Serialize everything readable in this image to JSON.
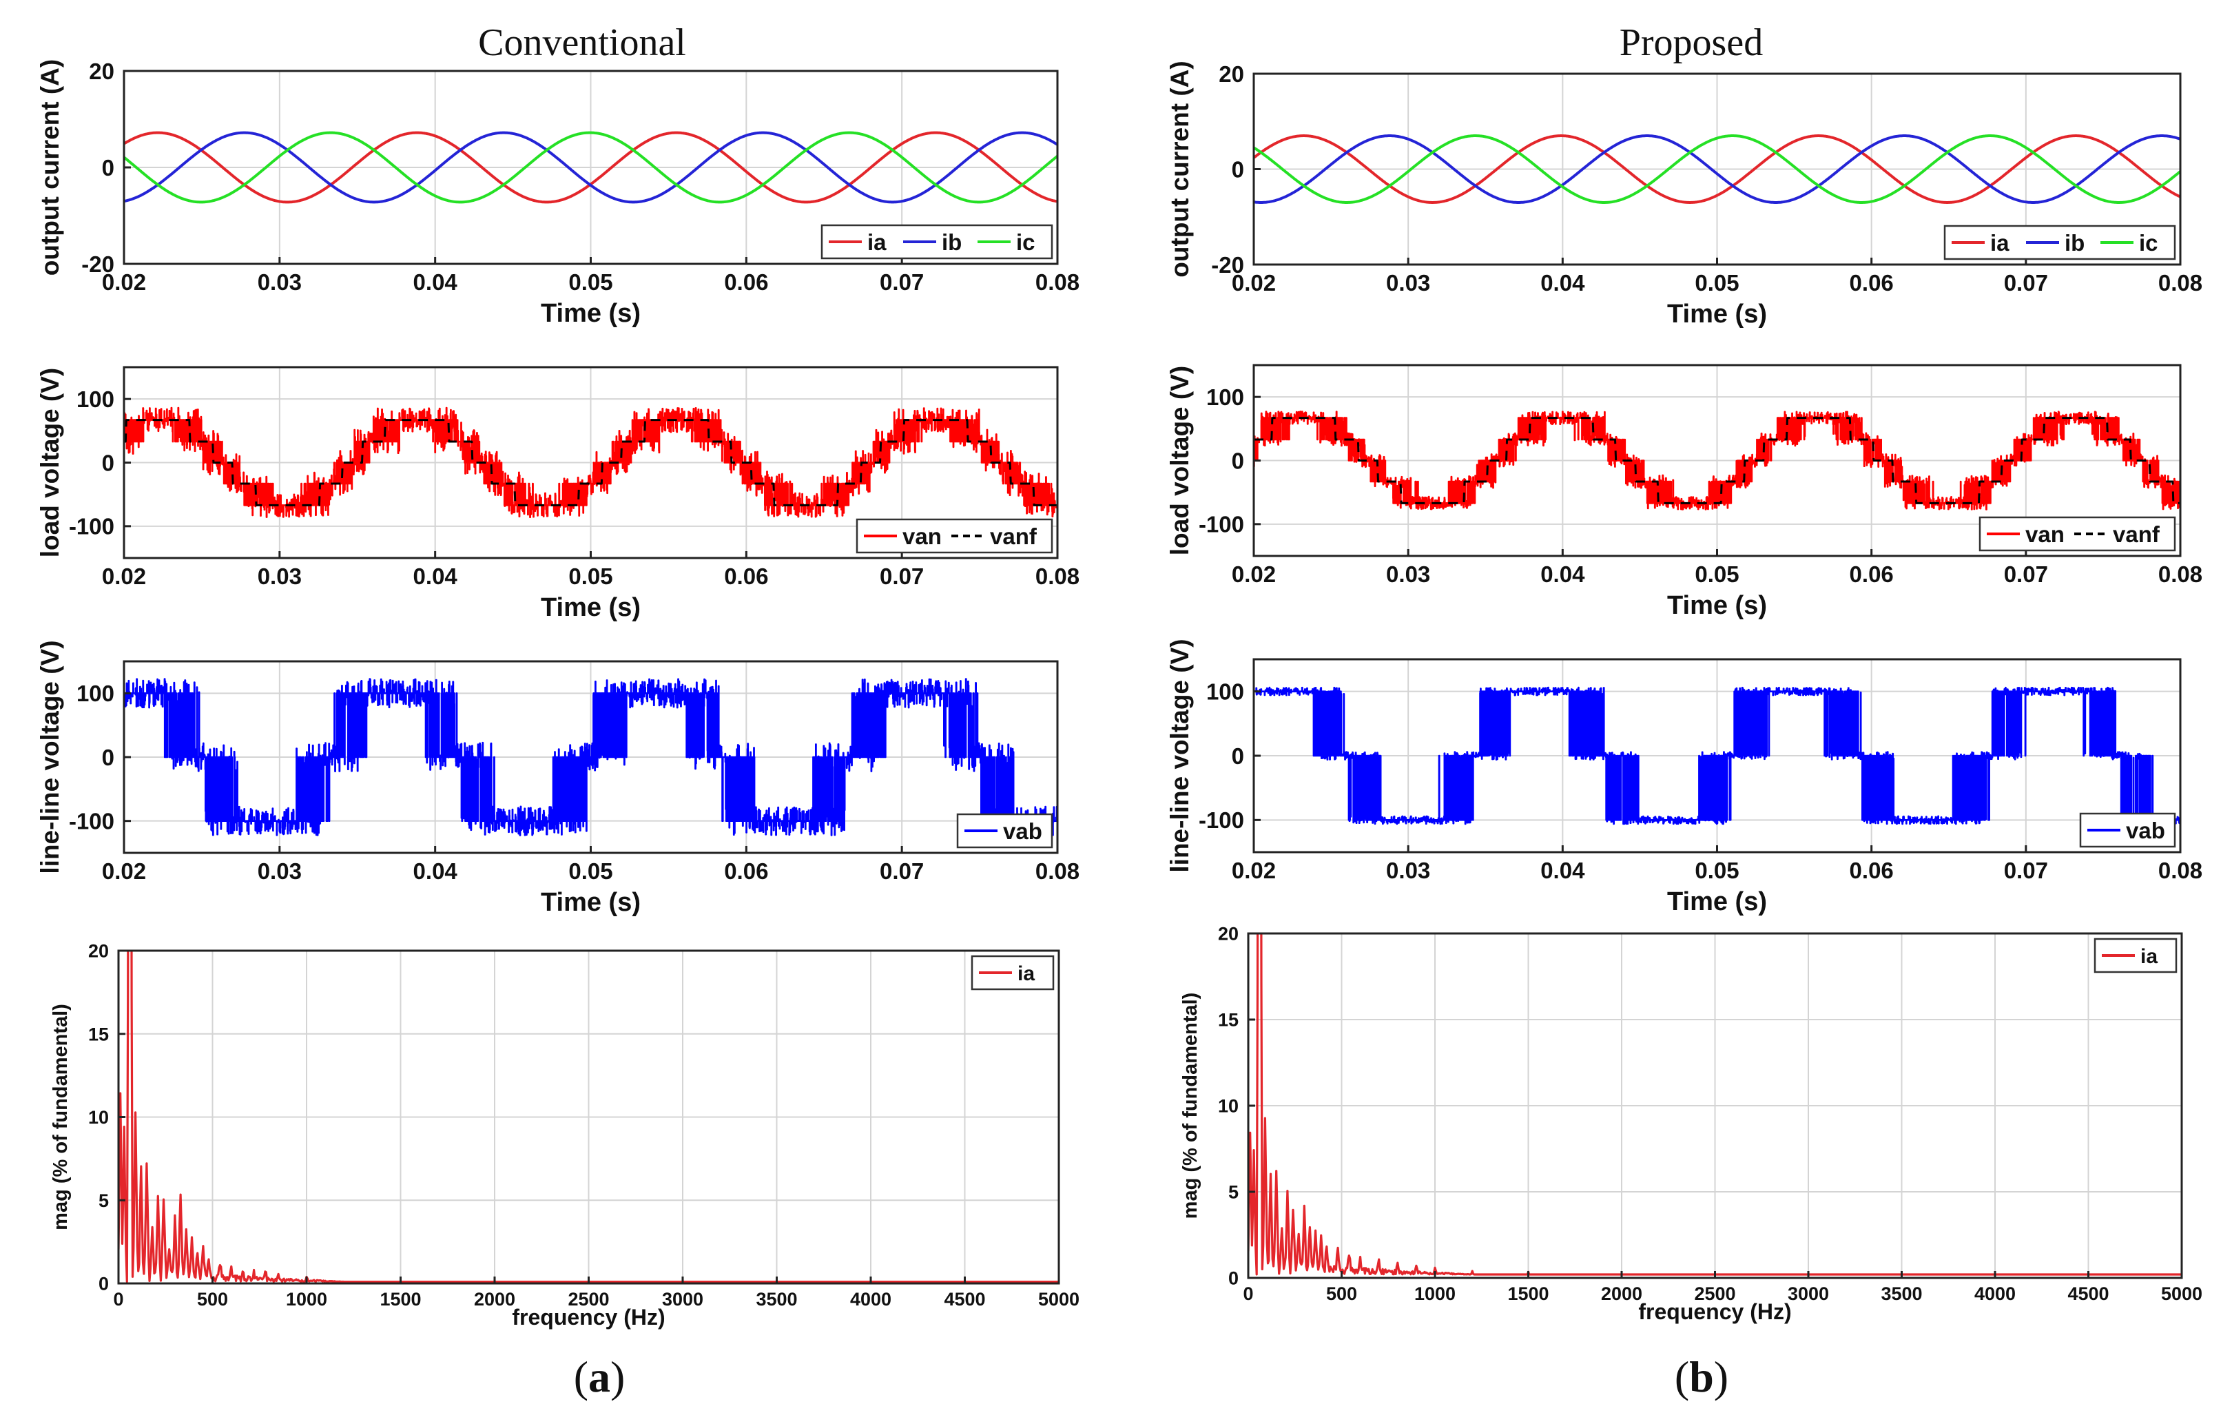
{
  "figure": {
    "columns": [
      {
        "title": "Conventional",
        "caption_letter": "a"
      },
      {
        "title": "Proposed",
        "caption_letter": "b"
      }
    ],
    "caption_open": "(",
    "caption_close": ")"
  },
  "colors": {
    "ia": "#e3262b",
    "ib": "#2424d6",
    "ic": "#25e025",
    "van": "#ff0000",
    "vanf": "#000000",
    "vab": "#0000ff",
    "fft": "#e3262b",
    "grid": "#d4d4d4",
    "axis": "#222222"
  },
  "chart_data": [
    {
      "id": "a-current",
      "panel": "a",
      "type": "line",
      "ylabel": "output current (A)",
      "xlabel": "Time (s)",
      "xlim": [
        0.02,
        0.08
      ],
      "ylim": [
        -20,
        20
      ],
      "xticks": [
        "0.02",
        "0.03",
        "0.04",
        "0.05",
        "0.06",
        "0.07",
        "0.08"
      ],
      "yticks": [
        "-20",
        "0",
        "20"
      ],
      "legend": [
        "ia",
        "ib",
        "ic"
      ],
      "legend_position": "bottom-right",
      "series": [
        {
          "name": "ia",
          "kind": "sine",
          "amplitude": 7.2,
          "frequency": 60,
          "phase_deg": -29
        },
        {
          "name": "ib",
          "kind": "sine",
          "amplitude": 7.2,
          "frequency": 60,
          "phase_deg": -149
        },
        {
          "name": "ic",
          "kind": "sine",
          "amplitude": 7.2,
          "frequency": 60,
          "phase_deg": 91
        }
      ]
    },
    {
      "id": "a-load",
      "panel": "a",
      "type": "line",
      "ylabel": "load voltage (V)",
      "xlabel": "Time (s)",
      "xlim": [
        0.02,
        0.08
      ],
      "ylim": [
        -150,
        150
      ],
      "xticks": [
        "0.02",
        "0.03",
        "0.04",
        "0.05",
        "0.06",
        "0.07",
        "0.08"
      ],
      "yticks": [
        "-100",
        "0",
        "100"
      ],
      "legend": [
        "van",
        "vanf"
      ],
      "legend_position": "bottom-right",
      "series": [
        {
          "name": "van",
          "kind": "pwm-phase",
          "amplitude": 70,
          "frequency": 60,
          "phase_deg": -29,
          "levels": [
            -67,
            -33,
            0,
            33,
            67
          ],
          "ripple": 38,
          "seed": 11
        },
        {
          "name": "vanf",
          "kind": "staircase-dashed",
          "amplitude": 70,
          "frequency": 60,
          "phase_deg": -29,
          "levels": [
            -67,
            -33,
            0,
            33,
            67
          ]
        }
      ]
    },
    {
      "id": "a-line",
      "panel": "a",
      "type": "line",
      "ylabel": "line-line voltage (V)",
      "xlabel": "Time (s)",
      "xlim": [
        0.02,
        0.08
      ],
      "ylim": [
        -150,
        150
      ],
      "xticks": [
        "0.02",
        "0.03",
        "0.04",
        "0.05",
        "0.06",
        "0.07",
        "0.08"
      ],
      "yticks": [
        "-100",
        "0",
        "100"
      ],
      "legend": [
        "vab"
      ],
      "legend_position": "bottom-right",
      "series": [
        {
          "name": "vab",
          "kind": "pwm-line",
          "amplitude": 125,
          "frequency": 60,
          "phase_deg": 1,
          "levels": [
            -100,
            0,
            100
          ],
          "ripple": 45,
          "seed": 23
        }
      ]
    },
    {
      "id": "a-fft",
      "panel": "a",
      "type": "line",
      "ylabel": "mag (% of fundamental)",
      "xlabel": "frequency (Hz)",
      "xlim": [
        0,
        5000
      ],
      "ylim": [
        0,
        20
      ],
      "xticks": [
        "0",
        "500",
        "1000",
        "1500",
        "2000",
        "2500",
        "3000",
        "3500",
        "4000",
        "4500",
        "5000"
      ],
      "yticks": [
        "0",
        "5",
        "10",
        "15",
        "20"
      ],
      "legend": [
        "ia"
      ],
      "legend_position": "top-right",
      "series": [
        {
          "name": "ia",
          "kind": "spectrum",
          "peaks": [
            [
              10,
              11
            ],
            [
              30,
              9
            ],
            [
              60,
              100
            ],
            [
              90,
              10
            ],
            [
              120,
              7
            ],
            [
              150,
              6.8
            ],
            [
              180,
              3
            ],
            [
              210,
              4.8
            ],
            [
              240,
              4.9
            ],
            [
              270,
              2
            ],
            [
              300,
              3.5
            ],
            [
              330,
              5.2
            ],
            [
              360,
              3
            ],
            [
              390,
              2.5
            ],
            [
              420,
              1.8
            ],
            [
              450,
              2
            ],
            [
              480,
              1.2
            ],
            [
              540,
              1
            ],
            [
              600,
              0.8
            ],
            [
              660,
              0.6
            ],
            [
              720,
              0.5
            ],
            [
              780,
              0.7
            ],
            [
              850,
              0.4
            ],
            [
              1000,
              0.3
            ]
          ],
          "floor": 0.1
        }
      ]
    },
    {
      "id": "b-current",
      "panel": "b",
      "type": "line",
      "ylabel": "output current (A)",
      "xlabel": "Time (s)",
      "xlim": [
        0.02,
        0.08
      ],
      "ylim": [
        -20,
        20
      ],
      "xticks": [
        "0.02",
        "0.03",
        "0.04",
        "0.05",
        "0.06",
        "0.07",
        "0.08"
      ],
      "yticks": [
        "-20",
        "0",
        "20"
      ],
      "legend": [
        "ia",
        "ib",
        "ic"
      ],
      "legend_position": "bottom-right",
      "series": [
        {
          "name": "ia",
          "kind": "sine",
          "amplitude": 7.0,
          "frequency": 60,
          "phase_deg": -52
        },
        {
          "name": "ib",
          "kind": "sine",
          "amplitude": 7.0,
          "frequency": 60,
          "phase_deg": -172
        },
        {
          "name": "ic",
          "kind": "sine",
          "amplitude": 7.0,
          "frequency": 60,
          "phase_deg": 68
        }
      ]
    },
    {
      "id": "b-load",
      "panel": "b",
      "type": "line",
      "ylabel": "load voltage (V)",
      "xlabel": "Time (s)",
      "xlim": [
        0.02,
        0.08
      ],
      "ylim": [
        -150,
        150
      ],
      "xticks": [
        "0.02",
        "0.03",
        "0.04",
        "0.05",
        "0.06",
        "0.07",
        "0.08"
      ],
      "yticks": [
        "-100",
        "0",
        "100"
      ],
      "legend": [
        "van",
        "vanf"
      ],
      "legend_position": "bottom-right",
      "series": [
        {
          "name": "van",
          "kind": "pwm-phase",
          "amplitude": 70,
          "frequency": 60,
          "phase_deg": -52,
          "levels": [
            -67,
            -33,
            0,
            33,
            67
          ],
          "ripple": 20,
          "seed": 37
        },
        {
          "name": "vanf",
          "kind": "staircase-dashed",
          "amplitude": 70,
          "frequency": 60,
          "phase_deg": -52,
          "levels": [
            -67,
            -33,
            0,
            33,
            67
          ]
        }
      ]
    },
    {
      "id": "b-line",
      "panel": "b",
      "type": "line",
      "ylabel": "line-line voltage (V)",
      "xlabel": "Time (s)",
      "xlim": [
        0.02,
        0.08
      ],
      "ylim": [
        -150,
        150
      ],
      "xticks": [
        "0.02",
        "0.03",
        "0.04",
        "0.05",
        "0.06",
        "0.07",
        "0.08"
      ],
      "yticks": [
        "-100",
        "0",
        "100"
      ],
      "legend": [
        "vab"
      ],
      "legend_position": "bottom-right",
      "series": [
        {
          "name": "vab",
          "kind": "pwm-line",
          "amplitude": 125,
          "frequency": 60,
          "phase_deg": -22,
          "levels": [
            -100,
            0,
            100
          ],
          "ripple": 12,
          "seed": 51
        }
      ]
    },
    {
      "id": "b-fft",
      "panel": "b",
      "type": "line",
      "ylabel": "mag (% of fundamental)",
      "xlabel": "frequency (Hz)",
      "xlim": [
        0,
        5000
      ],
      "ylim": [
        0,
        20
      ],
      "xticks": [
        "0",
        "500",
        "1000",
        "1500",
        "2000",
        "2500",
        "3000",
        "3500",
        "4000",
        "4500",
        "5000"
      ],
      "yticks": [
        "0",
        "5",
        "10",
        "15",
        "20"
      ],
      "legend": [
        "ia"
      ],
      "legend_position": "top-right",
      "series": [
        {
          "name": "ia",
          "kind": "spectrum",
          "peaks": [
            [
              10,
              8
            ],
            [
              30,
              7
            ],
            [
              60,
              100
            ],
            [
              90,
              9
            ],
            [
              120,
              6
            ],
            [
              150,
              5.8
            ],
            [
              180,
              2.5
            ],
            [
              210,
              4.6
            ],
            [
              240,
              3.8
            ],
            [
              270,
              2.5
            ],
            [
              300,
              3.6
            ],
            [
              330,
              2.8
            ],
            [
              360,
              2.5
            ],
            [
              390,
              2.2
            ],
            [
              420,
              1.8
            ],
            [
              480,
              1.5
            ],
            [
              540,
              1.2
            ],
            [
              600,
              1.0
            ],
            [
              700,
              0.8
            ],
            [
              800,
              0.7
            ],
            [
              900,
              0.6
            ],
            [
              1000,
              0.5
            ],
            [
              1200,
              0.4
            ],
            [
              1500,
              0.35
            ]
          ],
          "floor": 0.2
        }
      ]
    }
  ]
}
